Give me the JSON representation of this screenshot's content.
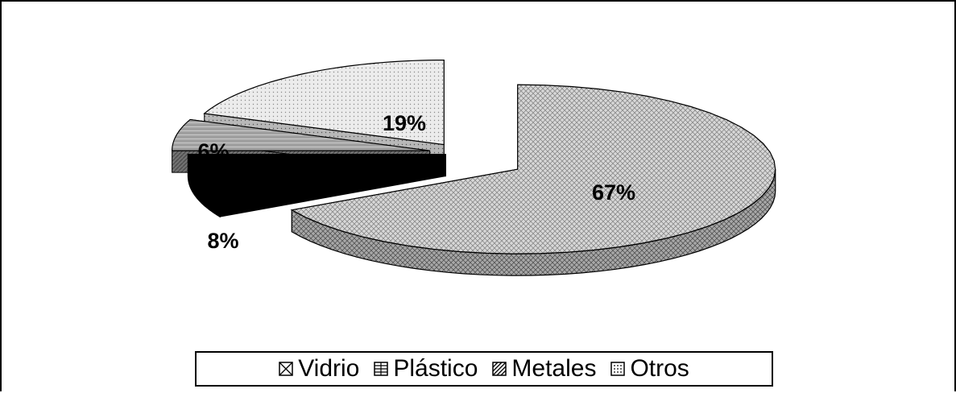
{
  "chart_data": {
    "type": "pie",
    "style": "3d-exploded",
    "categories": [
      "Vidrio",
      "Plástico",
      "Metales",
      "Otros"
    ],
    "values": [
      67,
      8,
      6,
      19
    ],
    "labels": [
      "67%",
      "8%",
      "6%",
      "19%"
    ],
    "legend_position": "bottom",
    "colors": {
      "Vidrio": "#d6d6d6",
      "Plástico": "#000000",
      "Metales": "#9a9a9a",
      "Otros": "#e6e6e6",
      "outline": "#000000"
    }
  },
  "legend": {
    "items": [
      {
        "label": "Vidrio",
        "icon": "crosshatch-swatch-icon"
      },
      {
        "label": "Plástico",
        "icon": "grid-swatch-icon"
      },
      {
        "label": "Metales",
        "icon": "diagonal-swatch-icon"
      },
      {
        "label": "Otros",
        "icon": "dotted-swatch-icon"
      }
    ]
  }
}
